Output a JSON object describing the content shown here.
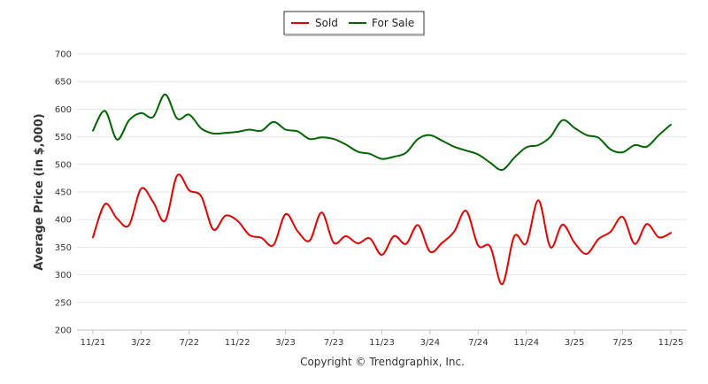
{
  "chart_data": {
    "type": "line",
    "title": "",
    "xlabel": "",
    "ylabel": "Average Price (in $,000)",
    "ylim": [
      200,
      700
    ],
    "yticks": [
      200,
      250,
      300,
      350,
      400,
      450,
      500,
      550,
      600,
      650,
      700
    ],
    "grid": true,
    "legend_position": "top-center",
    "x_tick_labels": [
      "11/21",
      "3/22",
      "7/22",
      "11/22",
      "3/23",
      "7/23",
      "11/23",
      "3/24",
      "7/24",
      "11/24",
      "3/25",
      "7/25",
      "11/25"
    ],
    "x_tick_indices": [
      0,
      4,
      8,
      12,
      16,
      20,
      24,
      28,
      32,
      36,
      40,
      44,
      48
    ],
    "series": [
      {
        "name": "Sold",
        "color": "#e00000",
        "values": [
          368,
          428,
          402,
          390,
          456,
          432,
          398,
          480,
          453,
          442,
          382,
          407,
          398,
          372,
          367,
          354,
          410,
          379,
          362,
          413,
          358,
          370,
          357,
          366,
          336,
          370,
          356,
          390,
          342,
          358,
          378,
          416,
          353,
          351,
          283,
          370,
          357,
          435,
          350,
          391,
          358,
          338,
          365,
          378,
          405,
          356,
          392,
          368,
          376
        ]
      },
      {
        "name": "For Sale",
        "color": "#006400",
        "values": [
          561,
          597,
          545,
          580,
          593,
          586,
          627,
          583,
          590,
          565,
          556,
          557,
          559,
          563,
          561,
          577,
          563,
          560,
          546,
          549,
          546,
          536,
          523,
          519,
          510,
          514,
          521,
          546,
          553,
          543,
          532,
          525,
          518,
          503,
          490,
          512,
          531,
          535,
          550,
          580,
          566,
          553,
          548,
          527,
          522,
          535,
          532,
          553,
          572
        ]
      }
    ]
  },
  "footer": {
    "copyright": "Copyright © Trendgraphix, Inc."
  }
}
